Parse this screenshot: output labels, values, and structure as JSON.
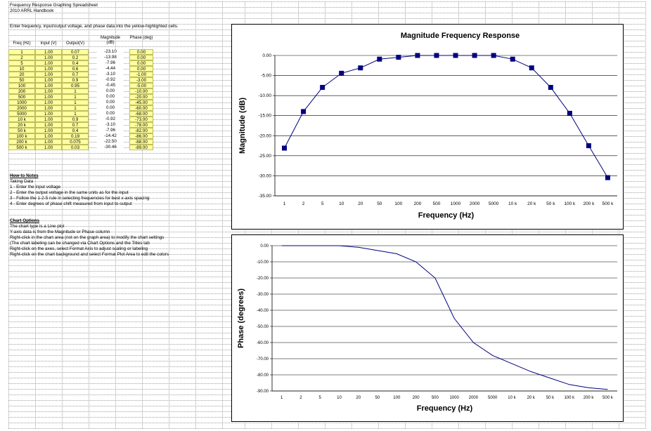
{
  "sheet": {
    "title": "Frequency Response Graphing Spreadsheet",
    "subtitle": "2010 ARRL Handbook",
    "instruction": "Enter frequency, input/output voltage, and phase data into the yellow-highlighted cells."
  },
  "table": {
    "headers": [
      "Freq (Hz)",
      "Input (V)",
      "Output(V)",
      "Magnitude (dB)",
      "Phase (deg)"
    ],
    "rows": [
      [
        "1",
        "1.00",
        "0.07",
        "-23.10",
        "0.00"
      ],
      [
        "2",
        "1.00",
        "0.2",
        "-13.98",
        "0.00"
      ],
      [
        "5",
        "1.00",
        "0.4",
        "-7.96",
        "0.00"
      ],
      [
        "10",
        "1.00",
        "0.6",
        "-4.44",
        "0.00"
      ],
      [
        "20",
        "1.00",
        "0.7",
        "-3.10",
        "-1.00"
      ],
      [
        "50",
        "1.00",
        "0.9",
        "-0.92",
        "-3.00"
      ],
      [
        "100",
        "1.00",
        "0.95",
        "-0.45",
        "-5.00"
      ],
      [
        "200",
        "1.00",
        "1",
        "0.00",
        "-10.00"
      ],
      [
        "500",
        "1.00",
        "1",
        "0.00",
        "-20.00"
      ],
      [
        "1000",
        "1.00",
        "1",
        "0.00",
        "-45.00"
      ],
      [
        "2000",
        "1.00",
        "1",
        "0.00",
        "-60.00"
      ],
      [
        "5000",
        "1.00",
        "1",
        "0.00",
        "-68.00"
      ],
      [
        "10 k",
        "1.00",
        "0.9",
        "-0.92",
        "-73.00"
      ],
      [
        "20 k",
        "1.00",
        "0.7",
        "-3.10",
        "-78.00"
      ],
      [
        "50 k",
        "1.00",
        "0.4",
        "-7.96",
        "-82.00"
      ],
      [
        "100 k",
        "1.00",
        "0.19",
        "-14.42",
        "-86.00"
      ],
      [
        "200 k",
        "1.00",
        "0.075",
        "-22.50",
        "-88.00"
      ],
      [
        "500 k",
        "1.00",
        "0.03",
        "-30.46",
        "-89.00"
      ]
    ]
  },
  "notes": {
    "howto_heading": "How-to Notes",
    "taking_data": "Taking Data",
    "steps": [
      "1 - Enter the input voltage",
      "2 - Enter the output voltage in the same units as for the input",
      "3 - Follow the 1-2-5 rule in selecting frequencies for best x-axis spacing",
      "4 - Enter degrees of phase shift measured from input to output"
    ],
    "chart_heading": "Chart Options",
    "chart_lines": [
      "The chart type is a Line plot",
      "Y-axis data is from the Magnitude or Phase column",
      "Right-click in the chart area (not on the graph area) to modify the chart settings",
      "        (The chart labeling can be changed via Chart Options and the Titles tab",
      "Right-click on the axes, select Format Axis to adjust scaling or labeling",
      "Right-click on the chart background and select Format Plot Area to edit the colors"
    ]
  },
  "chart_data": [
    {
      "type": "line",
      "title": "Magnitude Frequency Response",
      "xlabel": "Frequency (Hz)",
      "ylabel": "Magnitude (dB)",
      "categories": [
        "1",
        "2",
        "5",
        "10",
        "20",
        "50",
        "100",
        "200",
        "500",
        "1000",
        "2000",
        "5000",
        "10 k",
        "20 k",
        "50 k",
        "100 k",
        "200 k",
        "500 k"
      ],
      "values": [
        -23.1,
        -13.98,
        -7.96,
        -4.44,
        -3.1,
        -0.92,
        -0.45,
        0,
        0,
        0,
        0,
        0,
        -0.92,
        -3.1,
        -7.96,
        -14.42,
        -22.5,
        -30.46
      ],
      "ylim": [
        -35,
        0
      ],
      "ytick_step": 5,
      "ytick_labels": [
        "0.00",
        "-5.00",
        "-10.00",
        "-15.00",
        "-20.00",
        "-25.00",
        "-30.00",
        "-35.00"
      ],
      "markers": true,
      "grid": true,
      "legend": "none",
      "series_color": "#000080"
    },
    {
      "type": "line",
      "title": "",
      "xlabel": "Frequency (Hz)",
      "ylabel": "Phase (degrees)",
      "categories": [
        "1",
        "2",
        "5",
        "10",
        "20",
        "50",
        "100",
        "200",
        "500",
        "1000",
        "2000",
        "5000",
        "10 k",
        "20 k",
        "50 k",
        "100 k",
        "200 k",
        "500 k"
      ],
      "values": [
        0,
        0,
        0,
        0,
        -1,
        -3,
        -5,
        -10,
        -20,
        -45,
        -60,
        -68,
        -73,
        -78,
        -82,
        -86,
        -88,
        -89
      ],
      "ylim": [
        -90,
        0
      ],
      "ytick_step": 10,
      "ytick_labels": [
        "0.00",
        "-10.00",
        "-20.00",
        "-30.00",
        "-40.00",
        "-50.00",
        "-60.00",
        "-70.00",
        "-80.00",
        "-90.00"
      ],
      "markers": false,
      "grid": true,
      "legend": "none",
      "series_color": "#000080"
    }
  ]
}
